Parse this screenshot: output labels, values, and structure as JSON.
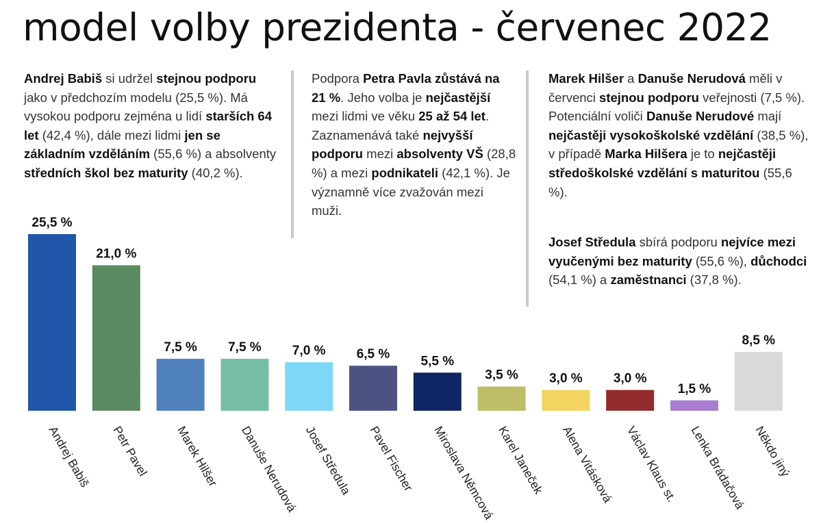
{
  "title": "model volby prezidenta - červenec 2022",
  "texts": {
    "p1": [
      {
        "b": true,
        "t": "Andrej Babiš"
      },
      {
        "t": " si udržel "
      },
      {
        "b": true,
        "t": "stejnou podporu"
      },
      {
        "t": " jako v předchozím modelu (25,5 %). Má vysokou podporu zejména u lidí "
      },
      {
        "b": true,
        "t": "starších 64 let"
      },
      {
        "t": " (42,4 %), dále mezi lidmi "
      },
      {
        "b": true,
        "t": "jen se základním vzděláním"
      },
      {
        "t": " (55,6 %) a absolventy "
      },
      {
        "b": true,
        "t": "středních škol bez maturity"
      },
      {
        "t": " (40,2 %)."
      }
    ],
    "p2": [
      {
        "t": "Podpora "
      },
      {
        "b": true,
        "t": "Petra Pavla"
      },
      {
        "t": " "
      },
      {
        "b": true,
        "t": "zůstává na 21 %"
      },
      {
        "t": ". Jeho volba je "
      },
      {
        "b": true,
        "t": "nejčastější"
      },
      {
        "t": " mezi lidmi ve věku "
      },
      {
        "b": true,
        "t": "25 až 54 let"
      },
      {
        "t": ". Zaznamenává také "
      },
      {
        "b": true,
        "t": "nejvyšší podporu"
      },
      {
        "t": " mezi "
      },
      {
        "b": true,
        "t": "absolventy VŠ"
      },
      {
        "t": " (28,8 %) a mezi "
      },
      {
        "b": true,
        "t": "podnikateli"
      },
      {
        "t": " (42,1 %). Je významně více zvažován mezi muži."
      }
    ],
    "p3": [
      {
        "b": true,
        "t": "Marek Hilšer"
      },
      {
        "t": " a "
      },
      {
        "b": true,
        "t": "Danuše Nerudová"
      },
      {
        "t": " měli v červenci "
      },
      {
        "b": true,
        "t": "stejnou podporu"
      },
      {
        "t": " veřejnosti (7,5 %). Potenciální voliči "
      },
      {
        "b": true,
        "t": "Danuše Nerudové"
      },
      {
        "t": " mají "
      },
      {
        "b": true,
        "t": "nejčastěji vysokoškolské vzdělání"
      },
      {
        "t": " (38,5 %), v případě "
      },
      {
        "b": true,
        "t": "Marka Hilšera"
      },
      {
        "t": " je to "
      },
      {
        "b": true,
        "t": "nejčastěji středoškolské vzdělání s maturitou"
      },
      {
        "t": " (55,6 %)."
      }
    ],
    "p4": [
      {
        "b": true,
        "t": "Josef Středula"
      },
      {
        "t": " sbírá podporu "
      },
      {
        "b": true,
        "t": "nejvíce mezi vyučenými bez maturity"
      },
      {
        "t": " (55,6 %), "
      },
      {
        "b": true,
        "t": "důchodci"
      },
      {
        "t": " (54,1 %) a "
      },
      {
        "b": true,
        "t": "zaměstnanci"
      },
      {
        "t": " (37,8 %)."
      }
    ]
  },
  "chart_data": {
    "type": "bar",
    "title": "model volby prezidenta - červenec 2022",
    "xlabel": "",
    "ylabel": "",
    "ylim": [
      0,
      25.5
    ],
    "categories": [
      "Andrej Babiš",
      "Petr Pavel",
      "Marek Hilšer",
      "Danuše Nerudová",
      "Josef Středula",
      "Pavel Fischer",
      "Miroslava Němcová",
      "Karel Janeček",
      "Alena Vitásková",
      "Václav Klaus st.",
      "Lenka Brádačová",
      "Někdo jiný"
    ],
    "values": [
      25.5,
      21.0,
      7.5,
      7.5,
      7.0,
      6.5,
      5.5,
      3.5,
      3.0,
      3.0,
      1.5,
      8.5
    ],
    "value_labels": [
      "25,5 %",
      "21,0 %",
      "7,5 %",
      "7,5 %",
      "7,0 %",
      "6,5 %",
      "5,5 %",
      "3,5 %",
      "3,0 %",
      "3,0 %",
      "1,5 %",
      "8,5 %"
    ],
    "colors": [
      "#1f56aa",
      "#5a8a5f",
      "#4f81bd",
      "#76bea4",
      "#7fd7f7",
      "#4d5283",
      "#0e2663",
      "#bfbe68",
      "#f3d45f",
      "#922b2c",
      "#a97dcf",
      "#d9d9d9"
    ],
    "grid": false,
    "legend": "none"
  }
}
